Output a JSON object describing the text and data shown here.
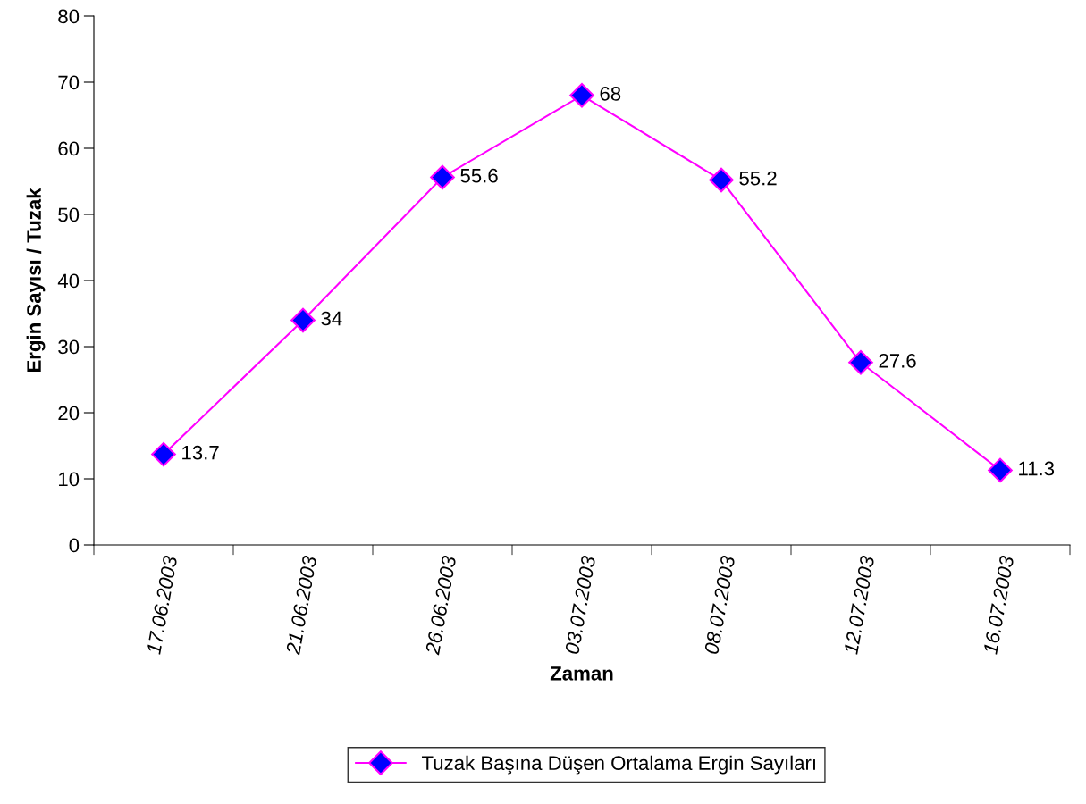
{
  "chart_data": {
    "type": "line",
    "xlabel": "Zaman",
    "ylabel": "Ergin Sayısı / Tuzak",
    "categories": [
      "17.06.2003",
      "21.06.2003",
      "26.06.2003",
      "03.07.2003",
      "08.07.2003",
      "12.07.2003",
      "16.07.2003"
    ],
    "series": [
      {
        "name": "Tuzak Başına Düşen Ortalama Ergin Sayıları",
        "color": "#ff00ff",
        "colors": [
          "#0000ff",
          "#0000ff",
          "#0000ff",
          "#0000ff",
          "#0000ff",
          "#0000ff",
          "#0000ff"
        ],
        "values": [
          13.7,
          34,
          55.6,
          68,
          55.2,
          27.6,
          11.3
        ]
      }
    ],
    "ylim": [
      0,
      80
    ],
    "yticks": [
      0,
      10,
      20,
      30,
      40,
      50,
      60,
      70,
      80
    ],
    "marker": "diamond",
    "line_style": "solid",
    "data_labels": true,
    "grid": false,
    "legend": "bottom"
  }
}
